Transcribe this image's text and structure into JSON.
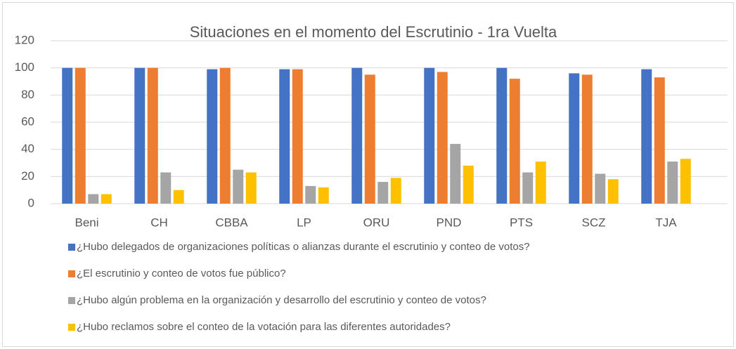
{
  "chart_data": {
    "type": "bar",
    "title": "Situaciones en el momento del Escrutinio - 1ra Vuelta",
    "categories": [
      "Beni",
      "CH",
      "CBBA",
      "LP",
      "ORU",
      "PND",
      "PTS",
      "SCZ",
      "TJA"
    ],
    "series": [
      {
        "name": "¿Hubo delegados de organizaciones políticas o alianzas durante el escrutinio y conteo de votos?",
        "color": "#4472c4",
        "values": [
          100,
          100,
          99,
          99,
          100,
          100,
          100,
          96,
          99
        ]
      },
      {
        "name": "¿El escrutinio y conteo de votos fue público?",
        "color": "#ed7d31",
        "values": [
          100,
          100,
          100,
          99,
          95,
          97,
          92,
          95,
          93
        ]
      },
      {
        "name": "¿Hubo algún problema en la organización y desarrollo del escrutinio y conteo de votos?",
        "color": "#a5a5a5",
        "values": [
          7,
          23,
          25,
          13,
          16,
          44,
          23,
          22,
          31
        ]
      },
      {
        "name": "¿Hubo reclamos sobre el conteo de la votación para las diferentes autoridades?",
        "color": "#ffc000",
        "values": [
          7,
          10,
          23,
          12,
          19,
          28,
          31,
          18,
          33
        ]
      }
    ],
    "ylim": [
      0,
      120
    ],
    "yticks": [
      0,
      20,
      40,
      60,
      80,
      100,
      120
    ],
    "grid": true,
    "legend": "bottom"
  }
}
